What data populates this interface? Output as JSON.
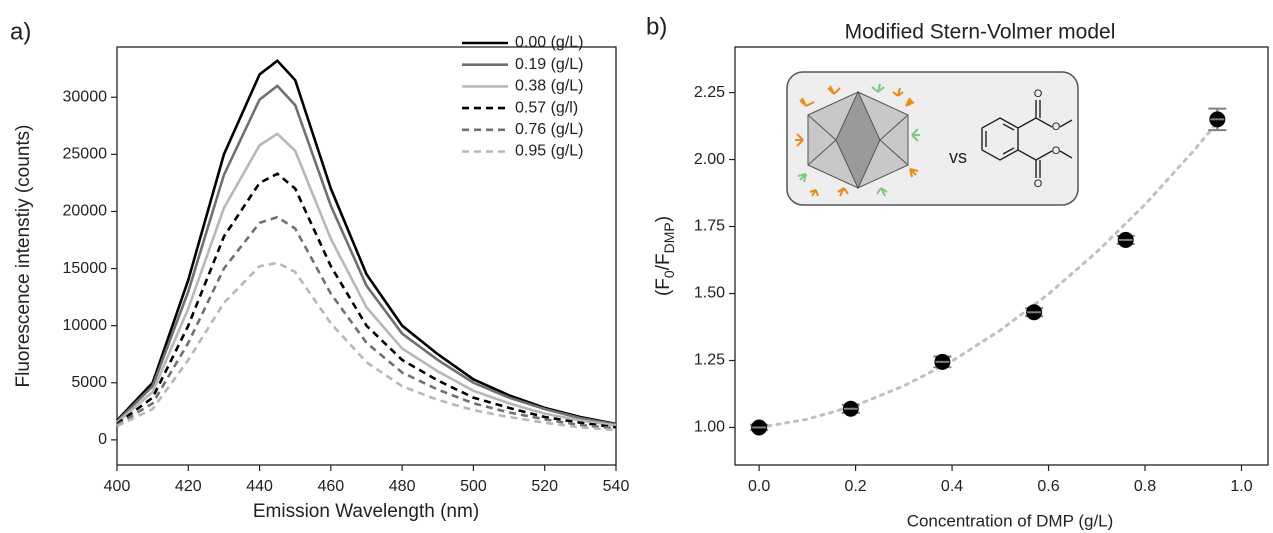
{
  "chart_data": [
    {
      "type": "line",
      "panel_label": "a)",
      "xlabel": "Emission Wavelength (nm)",
      "ylabel": "Fluorescence intenstiy (counts)",
      "x": [
        400,
        410,
        420,
        430,
        440,
        445,
        450,
        460,
        470,
        480,
        490,
        500,
        510,
        520,
        530,
        540
      ],
      "series": [
        {
          "name": "0.00 (g/L)",
          "color": "#000000",
          "linestyle": "solid",
          "values": [
            1700,
            5000,
            14000,
            25000,
            32000,
            33200,
            31500,
            22000,
            14500,
            10000,
            7500,
            5300,
            3900,
            2800,
            2000,
            1400
          ]
        },
        {
          "name": "0.19 (g/L)",
          "color": "#707070",
          "linestyle": "solid",
          "values": [
            1600,
            4700,
            13000,
            23200,
            29800,
            31000,
            29300,
            20500,
            13500,
            9300,
            7000,
            5000,
            3700,
            2700,
            1900,
            1350
          ]
        },
        {
          "name": "0.38 (g/L)",
          "color": "#b8b8b8",
          "linestyle": "solid",
          "values": [
            1500,
            4200,
            11500,
            20300,
            25800,
            26800,
            25300,
            17600,
            11600,
            8000,
            6000,
            4300,
            3200,
            2300,
            1700,
            1250
          ]
        },
        {
          "name": "0.57 (g/l)",
          "color": "#000000",
          "linestyle": "dashed",
          "values": [
            1400,
            3700,
            10000,
            17800,
            22500,
            23300,
            22000,
            15200,
            10000,
            7000,
            5200,
            3700,
            2800,
            2000,
            1500,
            1100
          ]
        },
        {
          "name": "0.76 (g/L)",
          "color": "#707070",
          "linestyle": "dashed",
          "values": [
            1300,
            3200,
            8500,
            15000,
            19000,
            19500,
            18500,
            12800,
            8500,
            5900,
            4400,
            3200,
            2400,
            1800,
            1300,
            1000
          ]
        },
        {
          "name": "0.95 (g/L)",
          "color": "#b8b8b8",
          "linestyle": "dashed",
          "values": [
            1200,
            2700,
            7000,
            12000,
            15200,
            15500,
            14700,
            10200,
            6800,
            4700,
            3500,
            2600,
            2000,
            1500,
            1100,
            850
          ]
        }
      ],
      "xlim": [
        400,
        540
      ],
      "xticks": [
        400,
        420,
        440,
        460,
        480,
        500,
        520,
        540
      ],
      "ylim": [
        -2200,
        34400
      ],
      "yticks": [
        0,
        5000,
        10000,
        15000,
        20000,
        25000,
        30000
      ],
      "legend": "upper right"
    },
    {
      "type": "scatter",
      "panel_label": "b)",
      "title": "Modified Stern-Volmer model",
      "xlabel": "Concentration of DMP (g/L)",
      "ylabel": [
        "(F",
        "0",
        "/F",
        "DMP",
        ")"
      ],
      "x": [
        0,
        0.19,
        0.38,
        0.57,
        0.76,
        0.95
      ],
      "values": [
        1.0,
        1.07,
        1.245,
        1.43,
        1.7,
        2.15
      ],
      "errors": [
        0.01,
        0.015,
        0.02,
        0.015,
        0.015,
        0.04
      ],
      "color": "#000000",
      "error_color": "#808080",
      "fit": {
        "color": "#c0c0c0",
        "x": [
          0,
          0.1,
          0.2,
          0.3,
          0.4,
          0.5,
          0.6,
          0.7,
          0.8,
          0.9,
          0.95
        ],
        "values": [
          1.0,
          1.031,
          1.082,
          1.155,
          1.248,
          1.363,
          1.498,
          1.655,
          1.832,
          2.031,
          2.138
        ]
      },
      "xlim": [
        -0.05,
        1.055
      ],
      "xticks": [
        {
          "value": 0,
          "label": "0.0"
        },
        {
          "value": 0.2,
          "label": "0.2"
        },
        {
          "value": 0.4,
          "label": "0.4"
        },
        {
          "value": 0.6,
          "label": "0.6"
        },
        {
          "value": 0.8,
          "label": "0.8"
        },
        {
          "value": 1,
          "label": "1.0"
        }
      ],
      "ylim": [
        0.86,
        2.42
      ],
      "yticks": [
        {
          "value": 1,
          "label": "1.00"
        },
        {
          "value": 1.25,
          "label": "1.25"
        },
        {
          "value": 1.5,
          "label": "1.50"
        },
        {
          "value": 1.75,
          "label": "1.75"
        },
        {
          "value": 2,
          "label": "2.00"
        },
        {
          "value": 2.25,
          "label": "2.25"
        }
      ],
      "inset": {
        "label": "vs",
        "atoms": [
          "O",
          "O",
          "O",
          "O"
        ]
      }
    }
  ]
}
